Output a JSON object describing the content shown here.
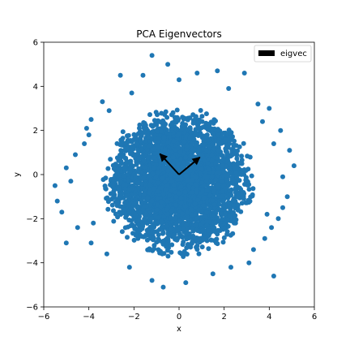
{
  "chart_data": {
    "type": "scatter",
    "title": "PCA Eigenvectors",
    "xlabel": "x",
    "ylabel": "y",
    "xlim": [
      -6,
      6
    ],
    "ylim": [
      -6,
      6
    ],
    "xticks": [
      -6,
      -4,
      -2,
      0,
      2,
      4,
      6
    ],
    "yticks": [
      -6,
      -4,
      -2,
      0,
      2,
      4,
      6
    ],
    "grid": false,
    "legend_position": "upper-right",
    "series": [
      {
        "kind": "points",
        "color": "#1f77b4",
        "description": "dense roughly isotropic cloud of ~10000 points centred at origin, std about 1.5",
        "values": [
          [
            -1.2,
            5.4
          ],
          [
            -0.5,
            5.0
          ],
          [
            0.8,
            4.6
          ],
          [
            1.7,
            4.7
          ],
          [
            2.9,
            4.6
          ],
          [
            -1.6,
            4.5
          ],
          [
            -2.6,
            4.5
          ],
          [
            -3.4,
            3.3
          ],
          [
            3.5,
            3.2
          ],
          [
            3.7,
            2.4
          ],
          [
            4.2,
            1.4
          ],
          [
            4.9,
            1.1
          ],
          [
            5.1,
            0.4
          ],
          [
            4.6,
            -0.1
          ],
          [
            4.8,
            -1.0
          ],
          [
            4.6,
            -1.5
          ],
          [
            4.4,
            -2.0
          ],
          [
            4.1,
            -2.4
          ],
          [
            3.8,
            -2.9
          ],
          [
            3.3,
            -3.4
          ],
          [
            4.2,
            -4.6
          ],
          [
            3.1,
            -4.0
          ],
          [
            2.3,
            -4.2
          ],
          [
            1.5,
            -4.5
          ],
          [
            0.3,
            -4.9
          ],
          [
            -0.7,
            -5.1
          ],
          [
            -1.2,
            -4.8
          ],
          [
            -2.2,
            -4.2
          ],
          [
            -3.2,
            -3.6
          ],
          [
            -3.9,
            -3.1
          ],
          [
            -5.0,
            -3.1
          ],
          [
            -4.5,
            -2.4
          ],
          [
            -5.2,
            -1.7
          ],
          [
            -5.4,
            -1.2
          ],
          [
            -5.5,
            -0.5
          ],
          [
            -4.8,
            -0.3
          ],
          [
            -5.0,
            0.3
          ],
          [
            -4.6,
            0.9
          ],
          [
            -4.2,
            1.4
          ],
          [
            -4.1,
            2.1
          ],
          [
            -3.9,
            2.5
          ],
          [
            -3.1,
            2.9
          ],
          [
            -2.1,
            3.7
          ],
          [
            2.2,
            3.9
          ],
          [
            0.0,
            4.3
          ],
          [
            4.0,
            3.0
          ],
          [
            4.5,
            2.0
          ],
          [
            3.9,
            -1.8
          ],
          [
            -3.8,
            -2.2
          ],
          [
            -4.0,
            1.8
          ]
        ]
      }
    ],
    "eigenvectors": {
      "label": "eigvec",
      "color": "#000000",
      "origin": [
        0,
        0
      ],
      "vectors": [
        [
          0.92,
          0.78
        ],
        [
          -0.85,
          0.94
        ]
      ]
    }
  }
}
